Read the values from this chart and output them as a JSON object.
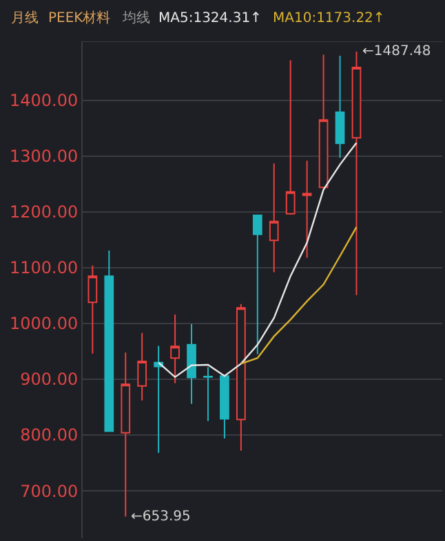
{
  "chart_data": {
    "type": "candlestick",
    "title": "月线",
    "subtitle": "PEEK材料",
    "legend_title": "均线",
    "categories": [
      null,
      null,
      null,
      null,
      null,
      null,
      null,
      null,
      null,
      null,
      null,
      null,
      null,
      null,
      null,
      null,
      null
    ],
    "ohlc": [
      [
        1038,
        1104,
        946,
        1085
      ],
      [
        1085,
        1131,
        807,
        807
      ],
      [
        804,
        948,
        653.95,
        891
      ],
      [
        888,
        983,
        862,
        932
      ],
      [
        930,
        960,
        768,
        923
      ],
      [
        938,
        1016,
        893,
        959
      ],
      [
        962,
        999,
        856,
        903
      ],
      [
        905,
        922,
        825,
        904
      ],
      [
        906,
        906,
        794,
        829
      ],
      [
        828,
        1035,
        772,
        1028
      ],
      [
        1194,
        1194,
        945,
        1160
      ],
      [
        1149,
        1287,
        1092,
        1183
      ],
      [
        1197,
        1472,
        1195,
        1236
      ],
      [
        1230,
        1292,
        1118,
        1233
      ],
      [
        1244,
        1482,
        1244,
        1365
      ],
      [
        1379,
        1480,
        1297,
        1323
      ],
      [
        1333,
        1487.48,
        1051,
        1459
      ]
    ],
    "colors": [
      "#e8413e",
      "#1fb5bf",
      "#e8413e",
      "#e8413e",
      "#1fb5bf",
      "#e8413e",
      "#1fb5bf",
      "#1fb5bf",
      "#1fb5bf",
      "#e8413e",
      "#1fb5bf",
      "#e8413e",
      "#e8413e",
      "#e8413e",
      "#e8413e",
      "#1fb5bf",
      "#e8413e"
    ],
    "series": [
      {
        "type": "line",
        "name": "MA5:1324.31↑",
        "color": "#e6e6e6",
        "values": [
          null,
          null,
          null,
          null,
          930,
          904,
          925,
          926,
          906,
          928,
          962,
          1010,
          1085,
          1145,
          1240,
          1285,
          1324
        ]
      },
      {
        "type": "line",
        "name": "MA10:1173.22↑",
        "color": "#d9b230",
        "values": [
          null,
          null,
          null,
          null,
          null,
          null,
          null,
          null,
          null,
          928,
          938,
          977,
          1007,
          1040,
          1070,
          1121,
          1173
        ]
      }
    ],
    "ylim": [
      615,
      1506
    ],
    "yticks": [
      {
        "value": 700,
        "label": "700.00"
      },
      {
        "value": 800,
        "label": "800.00"
      },
      {
        "value": 900,
        "label": "900.00"
      },
      {
        "value": 1000,
        "label": "1000.00"
      },
      {
        "value": 1100,
        "label": "1100.00"
      },
      {
        "value": 1200,
        "label": "1200.00"
      },
      {
        "value": 1300,
        "label": "1300.00"
      },
      {
        "value": 1400,
        "label": "1400.00"
      }
    ],
    "grid": "y",
    "tick_labels": "y",
    "marker": "none",
    "line_style": "solid",
    "annotations": [
      "←1487.48",
      "←653.95"
    ]
  }
}
